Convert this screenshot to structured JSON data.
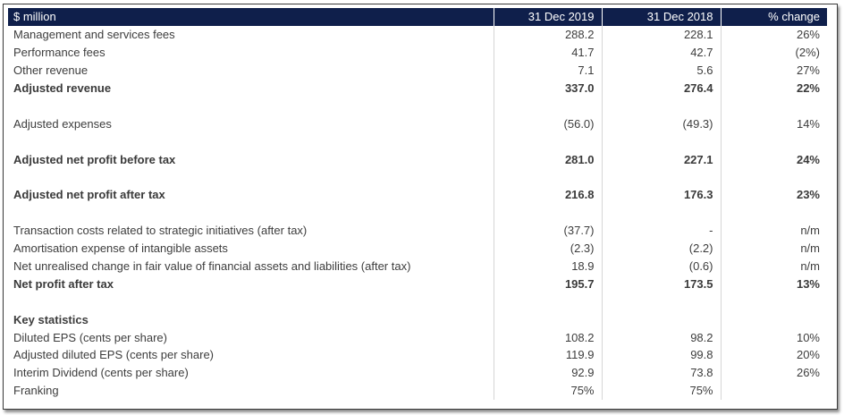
{
  "header": [
    "$ million",
    "31 Dec 2019",
    "31 Dec 2018",
    "% change"
  ],
  "rows": [
    {
      "label": "Management and services fees",
      "v2019": "288.2",
      "v2018": "228.1",
      "change": "26%",
      "bold": false
    },
    {
      "label": "Performance fees",
      "v2019": "41.7",
      "v2018": "42.7",
      "change": "(2%)",
      "bold": false
    },
    {
      "label": "Other revenue",
      "v2019": "7.1",
      "v2018": "5.6",
      "change": "27%",
      "bold": false
    },
    {
      "label": "Adjusted revenue",
      "v2019": "337.0",
      "v2018": "276.4",
      "change": "22%",
      "bold": true
    },
    {
      "blank": true
    },
    {
      "label": "Adjusted expenses",
      "v2019": "(56.0)",
      "v2018": "(49.3)",
      "change": "14%",
      "bold": false
    },
    {
      "blank": true
    },
    {
      "label": "Adjusted net profit before tax",
      "v2019": "281.0",
      "v2018": "227.1",
      "change": "24%",
      "bold": true
    },
    {
      "blank": true
    },
    {
      "label": "Adjusted net profit after tax",
      "v2019": "216.8",
      "v2018": "176.3",
      "change": "23%",
      "bold": true
    },
    {
      "blank": true
    },
    {
      "label": "Transaction costs related to strategic initiatives (after tax)",
      "v2019": "(37.7)",
      "v2018": "-",
      "change": "n/m",
      "bold": false
    },
    {
      "label": "Amortisation expense of intangible assets",
      "v2019": "(2.3)",
      "v2018": "(2.2)",
      "change": "n/m",
      "bold": false
    },
    {
      "label": "Net unrealised change in fair value of financial assets and liabilities (after tax)",
      "v2019": "18.9",
      "v2018": "(0.6)",
      "change": "n/m",
      "bold": false
    },
    {
      "label": "Net profit after tax",
      "v2019": "195.7",
      "v2018": "173.5",
      "change": "13%",
      "bold": true
    },
    {
      "blank": true
    },
    {
      "label": "Key statistics",
      "v2019": "",
      "v2018": "",
      "change": "",
      "bold": false,
      "section": true
    },
    {
      "label": "Diluted EPS (cents per share)",
      "v2019": "108.2",
      "v2018": "98.2",
      "change": "10%",
      "bold": false
    },
    {
      "label": "Adjusted diluted EPS (cents per share)",
      "v2019": "119.9",
      "v2018": "99.8",
      "change": "20%",
      "bold": false
    },
    {
      "label": "Interim Dividend (cents per share)",
      "v2019": "92.9",
      "v2018": "73.8",
      "change": "26%",
      "bold": false
    },
    {
      "label": "Franking",
      "v2019": "75%",
      "v2018": "75%",
      "change": "",
      "bold": false
    }
  ]
}
